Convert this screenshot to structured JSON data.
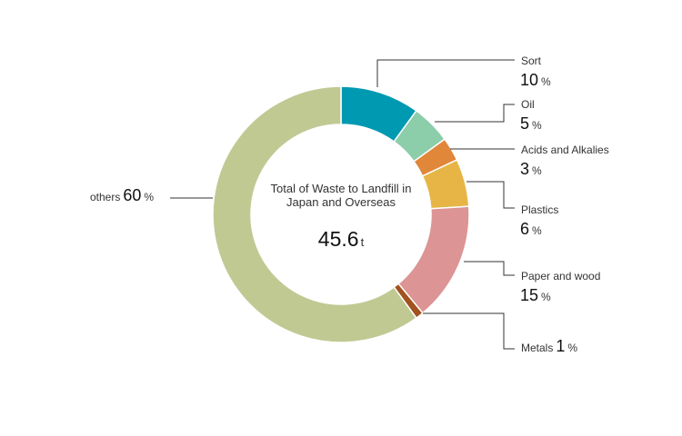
{
  "chart_data": {
    "type": "pie",
    "variant": "donut",
    "title": "Total of Waste to Landfill in Japan and Overseas",
    "total": {
      "value": "45.6",
      "unit": "t"
    },
    "unit": "%",
    "categories": [
      "Sort",
      "Oil",
      "Acids and Alkalies",
      "Plastics",
      "Paper and wood",
      "Metals",
      "others"
    ],
    "values": [
      10,
      5,
      3,
      6,
      15,
      1,
      60
    ],
    "colors": [
      "#0099b2",
      "#8ccdaa",
      "#e0873a",
      "#e6b545",
      "#dc9494",
      "#a1521f",
      "#c1c993"
    ],
    "start_angle": "12 o'clock, clockwise",
    "legend_position": "callout labels"
  },
  "center": {
    "title": "Total of Waste to Landfill in Japan and Overseas",
    "value": "45.6",
    "unit": "t"
  },
  "labels": {
    "sort": {
      "name": "Sort",
      "pct": "10",
      "unit": "%"
    },
    "oil": {
      "name": "Oil",
      "pct": "5",
      "unit": "%"
    },
    "acids": {
      "name": "Acids and Alkalies",
      "pct": "3",
      "unit": "%"
    },
    "plastics": {
      "name": "Plastics",
      "pct": "6",
      "unit": "%"
    },
    "paper": {
      "name": "Paper and wood",
      "pct": "15",
      "unit": "%"
    },
    "metals": {
      "name": "Metals",
      "pct": "1",
      "unit": "%"
    },
    "others": {
      "name": "others",
      "pct": "60",
      "unit": "%"
    }
  }
}
